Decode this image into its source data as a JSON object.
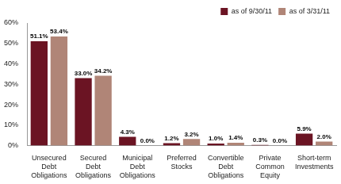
{
  "chart_data": {
    "type": "bar",
    "categories": [
      "Unsecured Debt Obligations",
      "Secured Debt Obligations",
      "Municipal Debt Obligations",
      "Preferred Stocks",
      "Convertible Debt Obligations",
      "Private Common Equity",
      "Short-term Investments"
    ],
    "series": [
      {
        "name": "as of 9/30/11",
        "color": "#6b1423",
        "values": [
          51.1,
          33.0,
          4.3,
          1.2,
          1.0,
          0.3,
          5.9
        ],
        "value_labels": [
          "51.1%",
          "33.0%",
          "4.3%",
          "1.2%",
          "1.0%",
          "0.3%",
          "5.9%"
        ]
      },
      {
        "name": "as of 3/31/11",
        "color": "#b08577",
        "values": [
          53.4,
          34.2,
          0.0,
          3.2,
          1.4,
          0.0,
          2.0
        ],
        "value_labels": [
          "53.4%",
          "34.2%",
          "0.0%",
          "3.2%",
          "1.4%",
          "0.0%",
          "2.0%"
        ]
      }
    ],
    "ylim": [
      0,
      60
    ],
    "yticks": [
      {
        "value": 0,
        "label": "0%"
      },
      {
        "value": 10,
        "label": "10%"
      },
      {
        "value": 20,
        "label": "20%"
      },
      {
        "value": 30,
        "label": "30%"
      },
      {
        "value": 40,
        "label": "40%"
      },
      {
        "value": 50,
        "label": "50%"
      },
      {
        "value": 60,
        "label": "60%"
      }
    ],
    "grid": false,
    "legend": "top-right",
    "data_labels": true
  }
}
